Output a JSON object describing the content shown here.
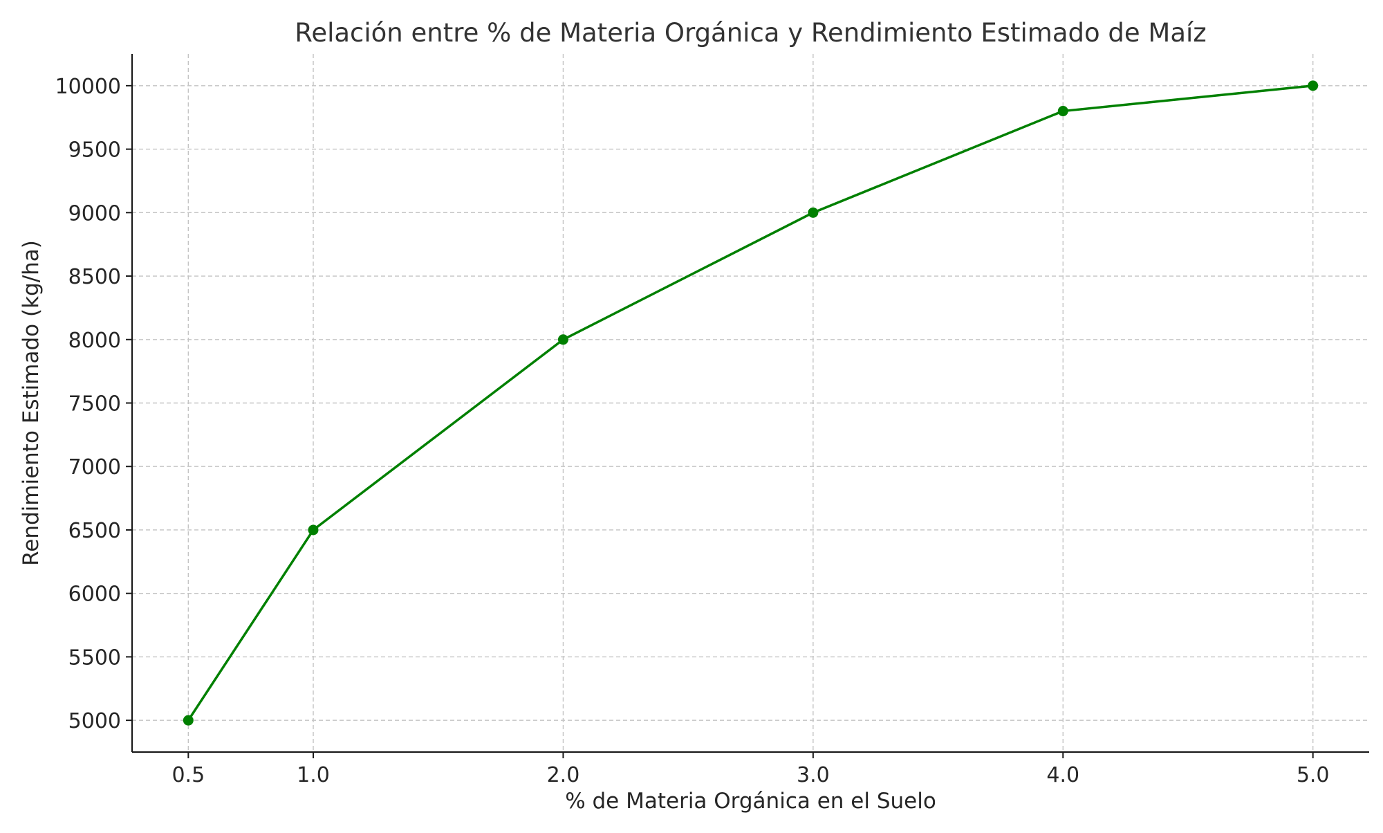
{
  "chart_data": {
    "type": "line",
    "title": "Relación entre % de Materia Orgánica y Rendimiento Estimado de Maíz",
    "xlabel": "% de Materia Orgánica en el Suelo",
    "ylabel": "Rendimiento Estimado (kg/ha)",
    "x": [
      0.5,
      1.0,
      2.0,
      3.0,
      4.0,
      5.0
    ],
    "x_tick_labels": [
      "0.5",
      "1.0",
      "2.0",
      "3.0",
      "4.0",
      "5.0"
    ],
    "series": [
      {
        "values": [
          5000,
          6500,
          8000,
          9000,
          9800,
          10000
        ],
        "color": "#008000",
        "marker": "circle"
      }
    ],
    "y_ticks": [
      5000,
      5500,
      6000,
      6500,
      7000,
      7500,
      8000,
      8500,
      9000,
      9500,
      10000
    ],
    "xlim": [
      0.275,
      5.225
    ],
    "ylim": [
      4750,
      10250
    ],
    "grid": true,
    "legend": "none"
  }
}
